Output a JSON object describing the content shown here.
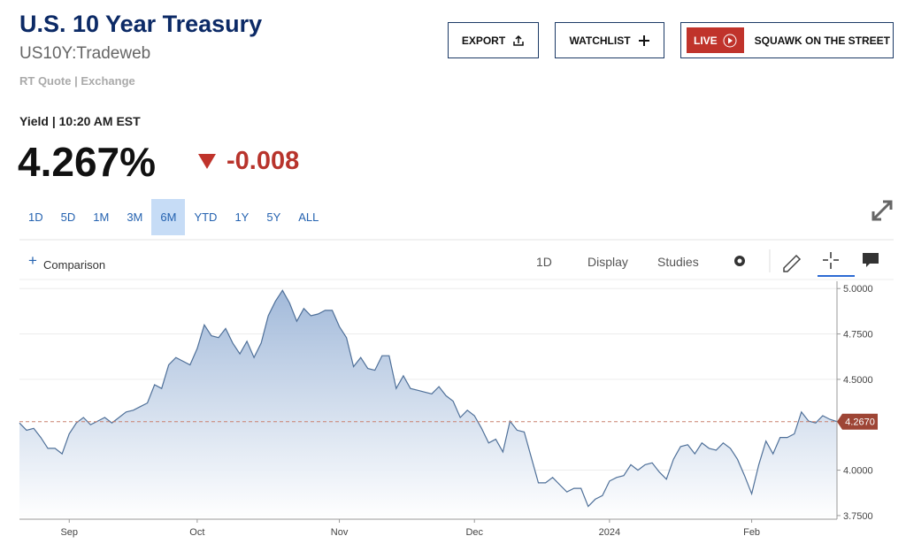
{
  "header": {
    "title": "U.S. 10 Year Treasury",
    "symbol": "US10Y:Tradeweb",
    "source": "RT Quote | Exchange"
  },
  "buttons": {
    "export": "EXPORT",
    "watchlist": "WATCHLIST",
    "live": "LIVE",
    "squawk": "SQUAWK ON THE STREET"
  },
  "quote": {
    "label": "Yield | 10:20 AM EST",
    "price": "4.267%",
    "change": "-0.008"
  },
  "ranges": {
    "options": [
      "1D",
      "5D",
      "1M",
      "3M",
      "6M",
      "YTD",
      "1Y",
      "5Y",
      "ALL"
    ],
    "active": 4
  },
  "toolbar": {
    "comparison": "Comparison",
    "interval": "1D",
    "display": "Display",
    "studies": "Studies"
  },
  "chart_data": {
    "type": "area",
    "color": "#4f7099",
    "grid": true,
    "categories": [
      null,
      null,
      null,
      null,
      null,
      null,
      null,
      "Sep",
      null,
      null,
      null,
      null,
      null,
      null,
      null,
      null,
      null,
      null,
      null,
      null,
      null,
      null,
      null,
      null,
      null,
      "Oct",
      null,
      null,
      null,
      null,
      null,
      null,
      null,
      null,
      null,
      null,
      null,
      null,
      null,
      null,
      null,
      null,
      null,
      null,
      null,
      "Nov",
      null,
      null,
      null,
      null,
      null,
      null,
      null,
      null,
      null,
      null,
      null,
      null,
      null,
      null,
      null,
      null,
      null,
      null,
      "Dec",
      null,
      null,
      null,
      null,
      null,
      null,
      null,
      null,
      null,
      null,
      null,
      null,
      null,
      null,
      null,
      null,
      null,
      null,
      "2024",
      null,
      null,
      null,
      null,
      null,
      null,
      null,
      null,
      null,
      null,
      null,
      null,
      null,
      null,
      null,
      null,
      null,
      null,
      null,
      "Feb",
      null,
      null,
      null,
      null,
      null,
      null,
      null,
      null,
      null,
      null,
      null,
      null
    ],
    "values": [
      4.26,
      4.22,
      4.23,
      4.18,
      4.12,
      4.12,
      4.09,
      4.2,
      4.26,
      4.29,
      4.25,
      4.27,
      4.29,
      4.26,
      4.29,
      4.32,
      4.33,
      4.35,
      4.37,
      4.47,
      4.45,
      4.58,
      4.62,
      4.6,
      4.58,
      4.67,
      4.8,
      4.74,
      4.73,
      4.78,
      4.7,
      4.64,
      4.71,
      4.62,
      4.7,
      4.85,
      4.93,
      4.99,
      4.92,
      4.82,
      4.89,
      4.85,
      4.86,
      4.88,
      4.88,
      4.79,
      4.73,
      4.57,
      4.62,
      4.56,
      4.55,
      4.63,
      4.63,
      4.45,
      4.52,
      4.45,
      4.44,
      4.43,
      4.42,
      4.46,
      4.41,
      4.38,
      4.29,
      4.33,
      4.3,
      4.23,
      4.15,
      4.17,
      4.1,
      4.27,
      4.22,
      4.21,
      4.07,
      3.93,
      3.93,
      3.96,
      3.92,
      3.88,
      3.9,
      3.9,
      3.8,
      3.84,
      3.86,
      3.94,
      3.96,
      3.97,
      4.03,
      4.0,
      4.03,
      4.04,
      3.99,
      3.95,
      4.06,
      4.13,
      4.14,
      4.09,
      4.15,
      4.12,
      4.11,
      4.15,
      4.12,
      4.06,
      3.97,
      3.87,
      4.03,
      4.16,
      4.09,
      4.18,
      4.18,
      4.2,
      4.32,
      4.27,
      4.26,
      4.3,
      4.28,
      4.267
    ],
    "ylim": [
      3.73,
      5.04
    ],
    "yticks": [
      {
        "value": 3.75,
        "label": "3.7500"
      },
      {
        "value": 4,
        "label": "4.0000"
      },
      {
        "value": 4.5,
        "label": "4.5000"
      },
      {
        "value": 4.75,
        "label": "4.7500"
      },
      {
        "value": 5,
        "label": "5.0000"
      }
    ],
    "last_value": {
      "value": 4.267,
      "label": "4.2670"
    }
  }
}
